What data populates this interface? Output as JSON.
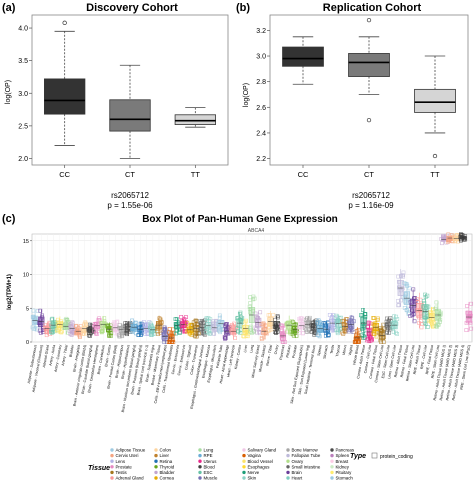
{
  "panels": [
    {
      "label": "(a)",
      "title": "Discovery Cohort"
    },
    {
      "label": "(b)",
      "title": "Replication Cohort"
    },
    {
      "label": "(c)",
      "title": "Box Plot of Pan-Human Gene Expression"
    }
  ],
  "chart_data": [
    {
      "type": "box",
      "title": "Discovery Cohort",
      "ylabel": "log(OP)",
      "xlabel": "rs2065712",
      "pvalue_text": "p = 1.55e-06",
      "categories": [
        "CC",
        "CT",
        "TT"
      ],
      "yticks": [
        2.0,
        2.5,
        3.0,
        3.5,
        4.0
      ],
      "ylim": [
        1.9,
        4.2
      ],
      "boxes": [
        {
          "min": 2.2,
          "q1": 2.68,
          "median": 2.89,
          "q3": 3.22,
          "max": 3.95,
          "outliers": [
            4.08
          ],
          "fill": "#333333"
        },
        {
          "min": 2.0,
          "q1": 2.42,
          "median": 2.6,
          "q3": 2.9,
          "max": 3.43,
          "outliers": [],
          "fill": "#7a7a7a"
        },
        {
          "min": 2.48,
          "q1": 2.52,
          "median": 2.58,
          "q3": 2.67,
          "max": 2.78,
          "outliers": [],
          "fill": "#d5d5d5"
        }
      ]
    },
    {
      "type": "box",
      "title": "Replication Cohort",
      "ylabel": "log(OP)",
      "xlabel": "rs2065712",
      "pvalue_text": "p = 1.16e-09",
      "categories": [
        "CC",
        "CT",
        "TT"
      ],
      "yticks": [
        2.2,
        2.4,
        2.6,
        2.8,
        3.0,
        3.2
      ],
      "ylim": [
        2.15,
        3.32
      ],
      "boxes": [
        {
          "min": 2.78,
          "q1": 2.92,
          "median": 2.98,
          "q3": 3.07,
          "max": 3.15,
          "outliers": [],
          "fill": "#333333"
        },
        {
          "min": 2.7,
          "q1": 2.84,
          "median": 2.95,
          "q3": 3.02,
          "max": 3.15,
          "outliers": [
            2.5,
            3.28
          ],
          "fill": "#7a7a7a"
        },
        {
          "min": 2.4,
          "q1": 2.56,
          "median": 2.64,
          "q3": 2.74,
          "max": 3.0,
          "outliers": [
            2.22
          ],
          "fill": "#d5d5d5"
        }
      ]
    },
    {
      "type": "box",
      "title": "Box Plot of Pan-Human Gene Expression",
      "facet_label": "ABCA4",
      "ylabel": "log2(TPM+1)",
      "ylim": [
        0,
        16
      ],
      "yticks": [
        0,
        5,
        10,
        15
      ],
      "tissue_labels": [
        "Adipose - Subcutaneous",
        "Adipose - Visceral (Omentum)",
        "Adrenal Gland",
        "Artery - Aorta",
        "Artery - Coronary",
        "Artery - Tibial",
        "Bladder",
        "Brain - Amygdala",
        "Brain - Anterior cingulate cortex (BA24)",
        "Brain - Caudate (basal ganglia)",
        "Brain - Cerebellar Hemisphere",
        "Brain - Cerebellum",
        "Brain - Cortex",
        "Brain - Frontal Cortex (BA9)",
        "Brain - Hippocampus",
        "Brain - Hypothalamus",
        "Brain - Nucleus accumbens (basal ganglia)",
        "Brain - Putamen (basal ganglia)",
        "Brain - Spinal cord (cervical c-1)",
        "Brain - Substantia nigra",
        "Breast - Mammary Tissue",
        "Cells - EBV-transformed lymphocytes",
        "Cells - Transformed fibroblasts",
        "Cervix - Ectocervix",
        "Cervix - Endocervix",
        "Colon - Sigmoid",
        "Colon - Transverse",
        "Esophagus - Gastroesophageal Junction",
        "Esophagus - Mucosa",
        "Esophagus - Muscularis",
        "Fallopian Tube",
        "Heart - Atrial Appendage",
        "Heart - Left Ventricle",
        "Kidney - Cortex",
        "Liver",
        "Lung",
        "Minor Salivary Gland",
        "Muscle - Skeletal",
        "Nerve - Tibial",
        "Ovary",
        "Pancreas",
        "Pituitary",
        "Prostate",
        "Skin - Not Sun Exposed (Suprapubic)",
        "Skin - Sun Exposed (Lower leg)",
        "Small Intestine - Terminal Ileum",
        "Spleen",
        "Stomach",
        "Testis",
        "Thyroid",
        "Uterus",
        "Vagina",
        "Whole Blood",
        "Cornea - Adult Tissue",
        "Cornea - Cell Line",
        "Cornea - Fetal Tissue",
        "Cornea - Stem Cell Line",
        "ESC - Stem Cell Line",
        "Lens - Stem Cell Line",
        "Retina - Adult Tissue",
        "Retina - Fetal Tissue",
        "Retina - Stem Cell Line",
        "RPE - Adult Tissue",
        "RPE - Cell Line",
        "RPE - Fetal Tissue",
        "RPE - Stem Cell Line",
        "Retina - Adult Tissue (AMD MGS 1)",
        "Retina - Adult Tissue (AMD MGS 2)",
        "Retina - Adult Tissue (AMD MGS 3)",
        "Retina - Adult Tissue (AMD MGS 4)",
        "RPE - Stem Cell Line (iPSC)"
      ],
      "series_colors": [
        "#9ecae1",
        "#6a3d9a",
        "#fb9a99",
        "#66c2a5",
        "#fbe36b",
        "#a6dba0",
        "#c2a5cf",
        "#f4a582",
        "#fdd49e",
        "#3f3f3f",
        "#e78ac3",
        "#b2df8a",
        "#66a61e",
        "#f0c8e6",
        "#a6a6a6",
        "#4a4a4a",
        "#6baed6",
        "#2171b5",
        "#b3b3e6",
        "#80cdc1",
        "#bf812d",
        "#7570b3",
        "#d95f02",
        "#1b9e77",
        "#e7298a",
        "#e6ab02",
        "#a6761d",
        "#666666",
        "#8dd3c7",
        "#bebada"
      ],
      "legend": {
        "title": "Tissue",
        "items": [
          {
            "name": "Adipose Tissue",
            "color": "#9ecae1"
          },
          {
            "name": "Cervix Uteri",
            "color": "#f4a582"
          },
          {
            "name": "Lens",
            "color": "#b3b3e6"
          },
          {
            "name": "Prostate",
            "color": "#e78ac3"
          },
          {
            "name": "Testis",
            "color": "#a6761d"
          },
          {
            "name": "Adrenal Gland",
            "color": "#fb9a99"
          },
          {
            "name": "Colon",
            "color": "#fdd49e"
          },
          {
            "name": "Liver",
            "color": "#bf812d"
          },
          {
            "name": "Retina",
            "color": "#2171b5"
          },
          {
            "name": "Thyroid",
            "color": "#66a61e"
          },
          {
            "name": "Bladder",
            "color": "#c2a5cf"
          },
          {
            "name": "Cornea",
            "color": "#e6ab02"
          },
          {
            "name": "Lung",
            "color": "#a6dba0"
          },
          {
            "name": "RPE",
            "color": "#6baed6"
          },
          {
            "name": "Uterus",
            "color": "#e7298a"
          },
          {
            "name": "Blood",
            "color": "#3f3f3f"
          },
          {
            "name": "ESC",
            "color": "#66c2a5"
          },
          {
            "name": "Muscle",
            "color": "#7570b3"
          },
          {
            "name": "Salivary Gland",
            "color": "#f0c8e6"
          },
          {
            "name": "Vagina",
            "color": "#d95f02"
          },
          {
            "name": "Blood Vessel",
            "color": "#fbe36b"
          },
          {
            "name": "Esophagus",
            "color": "#ffd92f"
          },
          {
            "name": "Nerve",
            "color": "#1b9e77"
          },
          {
            "name": "Skin",
            "color": "#8dd3c7"
          },
          {
            "name": "Bone Marrow",
            "color": "#a6a6a6"
          },
          {
            "name": "Fallopian Tube",
            "color": "#bebada"
          },
          {
            "name": "Ovary",
            "color": "#b2df8a"
          },
          {
            "name": "Small Intestine",
            "color": "#666666"
          },
          {
            "name": "Brain",
            "color": "#6a3d9a"
          },
          {
            "name": "Heart",
            "color": "#80cdc1"
          },
          {
            "name": "Pancreas",
            "color": "#4a4a4a"
          },
          {
            "name": "Spleen",
            "color": "#bc80bd"
          },
          {
            "name": "Breast",
            "color": "#fccde5"
          },
          {
            "name": "Kidney",
            "color": "#ccebc5"
          },
          {
            "name": "Pituitary",
            "color": "#ffed6f"
          },
          {
            "name": "Stomach",
            "color": "#9ecae1"
          }
        ],
        "type_title": "Type",
        "type_items": [
          "protein_coding"
        ]
      },
      "medians": [
        3.2,
        3.0,
        2.0,
        2.5,
        2.6,
        2.3,
        2.0,
        1.6,
        2.0,
        1.8,
        2.4,
        2.6,
        1.9,
        2.1,
        1.8,
        1.9,
        2.2,
        1.9,
        2.0,
        1.8,
        2.5,
        0.8,
        0.6,
        2.4,
        2.6,
        1.8,
        2.0,
        2.2,
        2.4,
        2.1,
        2.7,
        1.5,
        1.6,
        2.8,
        2.0,
        4.0,
        2.9,
        1.6,
        3.0,
        2.5,
        0.9,
        2.5,
        1.8,
        2.4,
        2.6,
        2.2,
        2.0,
        1.9,
        2.8,
        2.7,
        2.3,
        2.6,
        0.6,
        2.8,
        1.5,
        2.2,
        1.0,
        2.4,
        2.5,
        8.0,
        6.5,
        5.4,
        4.7,
        4.5,
        3.6,
        4.0,
        15.2,
        15.4,
        15.3,
        15.5,
        3.7
      ],
      "spreads": [
        1.6,
        1.8,
        1.0,
        1.2,
        1.2,
        1.2,
        1.0,
        1.0,
        1.0,
        1.0,
        1.2,
        1.2,
        1.0,
        1.0,
        1.0,
        1.0,
        1.0,
        1.0,
        1.0,
        1.0,
        1.4,
        1.6,
        1.4,
        1.2,
        1.2,
        1.0,
        1.2,
        1.2,
        1.2,
        1.2,
        1.3,
        1.2,
        1.2,
        1.6,
        1.2,
        2.8,
        1.6,
        1.2,
        1.6,
        1.4,
        1.6,
        1.4,
        1.2,
        1.2,
        1.2,
        1.2,
        1.2,
        1.2,
        1.4,
        1.4,
        1.2,
        1.4,
        1.6,
        2.2,
        1.4,
        1.4,
        1.6,
        1.2,
        1.4,
        2.8,
        2.4,
        2.4,
        2.6,
        2.6,
        1.6,
        2.0,
        0.6,
        0.6,
        0.6,
        0.5,
        2.2
      ]
    }
  ]
}
